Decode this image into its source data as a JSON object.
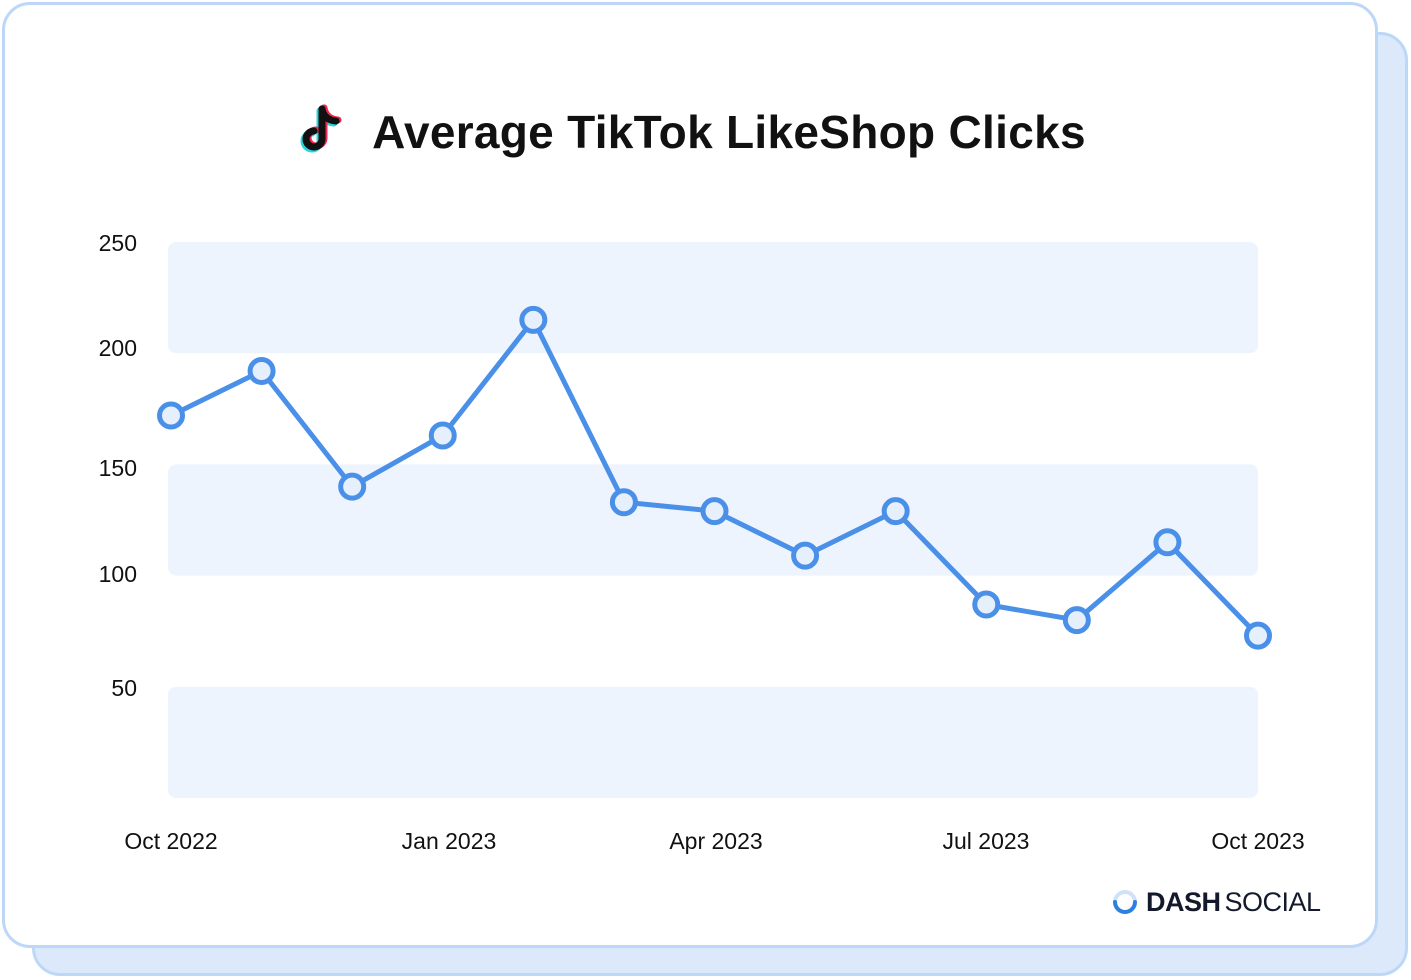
{
  "chart_data": {
    "type": "line",
    "title": "Average TikTok LikeShop Clicks",
    "x": [
      "Oct 2022",
      "Nov 2022",
      "Dec 2022",
      "Jan 2023",
      "Feb 2023",
      "Mar 2023",
      "Apr 2023",
      "May 2023",
      "Jun 2023",
      "Jul 2023",
      "Aug 2023",
      "Sep 2023",
      "Oct 2023"
    ],
    "values": [
      172,
      192,
      140,
      163,
      215,
      133,
      129,
      109,
      129,
      87,
      80,
      115,
      73
    ],
    "x_tick_labels": [
      "Oct 2022",
      "Jan 2023",
      "Apr 2023",
      "Jul 2023",
      "Oct 2023"
    ],
    "y_tick_labels": [
      "250",
      "200",
      "150",
      "100",
      "50"
    ],
    "ylim": [
      0,
      250
    ],
    "xlabel": "",
    "ylabel": "",
    "grid": "alternating horizontal bands",
    "colors": {
      "line": "#4a90e8",
      "marker_fill": "#e6f0fd",
      "band": "#eef4fd"
    }
  },
  "brand": {
    "bold": "DASH",
    "light": "SOCIAL"
  },
  "icons": {
    "title": "tiktok-icon",
    "brand": "dash-social-logo-icon"
  }
}
